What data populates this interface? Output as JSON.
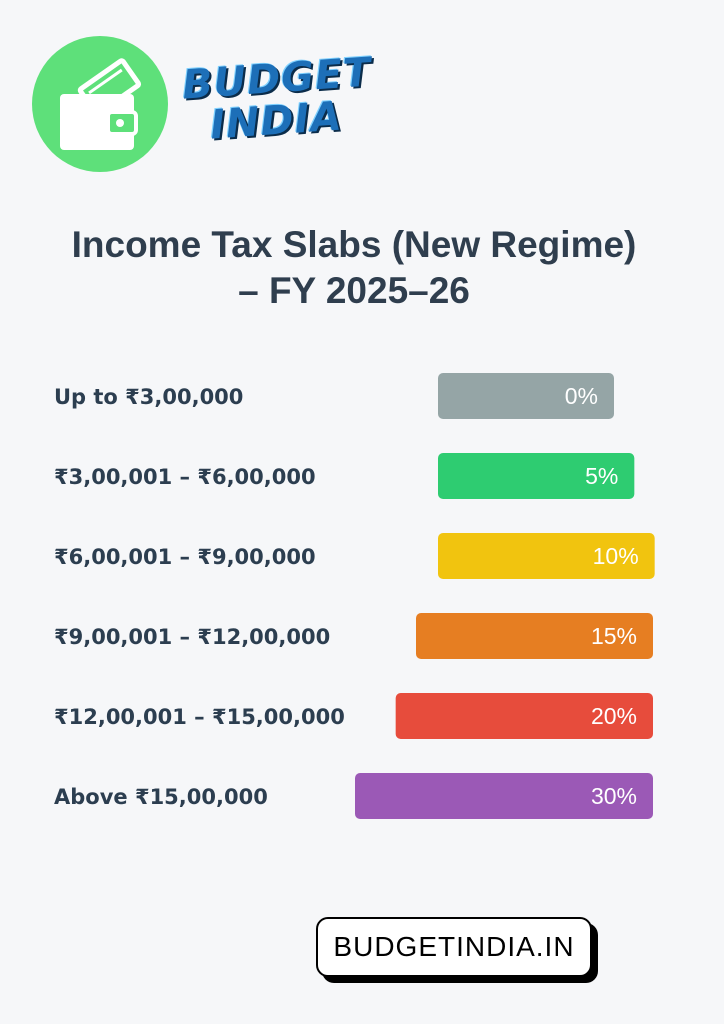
{
  "brand": {
    "line1": "BUDGET",
    "line2": "INDIA",
    "logo_icon": "wallet-icon"
  },
  "title": {
    "line1": "Income Tax Slabs (New Regime)",
    "line2": "– FY 2025–26"
  },
  "chart_data": {
    "type": "bar",
    "orientation": "horizontal",
    "categories": [
      "Up to ₹3,00,000",
      "₹3,00,001 – ₹6,00,000",
      "₹6,00,001 – ₹9,00,000",
      "₹9,00,001 – ₹12,00,000",
      "₹12,00,001 – ₹15,00,000",
      "Above ₹15,00,000"
    ],
    "values": [
      0,
      5,
      10,
      15,
      20,
      30
    ],
    "value_labels": [
      "0%",
      "5%",
      "10%",
      "15%",
      "20%",
      "30%"
    ],
    "colors": [
      "#95a5a6",
      "#2ecc71",
      "#f1c40f",
      "#e67e22",
      "#e74c3c",
      "#9b59b6"
    ],
    "title": "Income Tax Slabs (New Regime) – FY 2025–26",
    "xlabel": "",
    "ylabel": "",
    "xlim": [
      0,
      30
    ],
    "grid": false,
    "legend": "none"
  },
  "footer": {
    "website": "BUDGETINDIA.IN"
  }
}
